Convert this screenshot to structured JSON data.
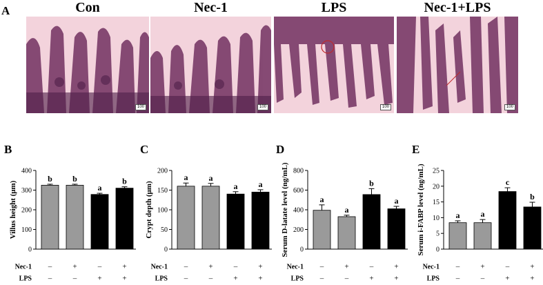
{
  "figure": {
    "panel_a_label": "A",
    "micrographs": [
      {
        "title": "Con",
        "scale_label": "100"
      },
      {
        "title": "Nec-1",
        "scale_label": "100"
      },
      {
        "title": "LPS",
        "scale_label": "100"
      },
      {
        "title": "Nec-1+LPS",
        "scale_label": "100"
      }
    ]
  },
  "colors": {
    "gray_bar": "#9a9a9a",
    "black_bar": "#000000",
    "tissue": "#f1c9d3",
    "stain": "#6c3560"
  },
  "chart_data": [
    {
      "panel": "B",
      "type": "bar",
      "categories": [
        "Con",
        "Nec-1",
        "LPS",
        "Nec-1+LPS"
      ],
      "values": [
        325,
        325,
        278,
        310
      ],
      "errors": [
        5,
        5,
        6,
        7
      ],
      "sig_letters": [
        "b",
        "b",
        "a",
        "b"
      ],
      "bar_colors": [
        "#9a9a9a",
        "#9a9a9a",
        "#000000",
        "#000000"
      ],
      "ylabel": "Villus height (μm)",
      "ylim": [
        0,
        400
      ],
      "yticks": [
        "0",
        "100",
        "200",
        "300",
        "400"
      ],
      "treatment_rows": [
        {
          "label": "Nec-1",
          "signs": [
            "–",
            "+",
            "–",
            "+"
          ]
        },
        {
          "label": "LPS",
          "signs": [
            "–",
            "–",
            "+",
            "+"
          ]
        }
      ]
    },
    {
      "panel": "C",
      "type": "bar",
      "categories": [
        "Con",
        "Nec-1",
        "LPS",
        "Nec-1+LPS"
      ],
      "values": [
        160,
        160,
        140,
        145
      ],
      "errors": [
        8,
        7,
        6,
        6
      ],
      "sig_letters": [
        "a",
        "a",
        "a",
        "a"
      ],
      "bar_colors": [
        "#9a9a9a",
        "#9a9a9a",
        "#000000",
        "#000000"
      ],
      "ylabel": "Crypt depth (μm)",
      "ylim": [
        0,
        200
      ],
      "yticks": [
        "0",
        "50",
        "100",
        "150",
        "200"
      ],
      "treatment_rows": [
        {
          "label": "Nec-1",
          "signs": [
            "–",
            "+",
            "–",
            "+"
          ]
        },
        {
          "label": "LPS",
          "signs": [
            "–",
            "–",
            "+",
            "+"
          ]
        }
      ]
    },
    {
      "panel": "D",
      "type": "bar",
      "categories": [
        "Con",
        "Nec-1",
        "LPS",
        "Nec-1+LPS"
      ],
      "values": [
        395,
        330,
        555,
        410
      ],
      "errors": [
        55,
        15,
        60,
        25
      ],
      "sig_letters": [
        "a",
        "a",
        "b",
        "a"
      ],
      "bar_colors": [
        "#9a9a9a",
        "#9a9a9a",
        "#000000",
        "#000000"
      ],
      "ylabel": "Serum D-latate level (ng/mL)",
      "ylim": [
        0,
        800
      ],
      "yticks": [
        "0",
        "200",
        "400",
        "600",
        "800"
      ],
      "treatment_rows": [
        {
          "label": "Nec-1",
          "signs": [
            "–",
            "+",
            "–",
            "+"
          ]
        },
        {
          "label": "LPS",
          "signs": [
            "–",
            "–",
            "+",
            "+"
          ]
        }
      ]
    },
    {
      "panel": "E",
      "type": "bar",
      "categories": [
        "Con",
        "Nec-1",
        "LPS",
        "Nec-1+LPS"
      ],
      "values": [
        8.4,
        8.4,
        18.3,
        13.4
      ],
      "errors": [
        0.6,
        1.0,
        1.2,
        1.5
      ],
      "sig_letters": [
        "a",
        "a",
        "c",
        "b"
      ],
      "bar_colors": [
        "#9a9a9a",
        "#9a9a9a",
        "#000000",
        "#000000"
      ],
      "ylabel": "Serum i-FABP level (ng/mL)",
      "ylim": [
        0,
        25
      ],
      "yticks": [
        "0",
        "5",
        "10",
        "15",
        "20",
        "25"
      ],
      "treatment_rows": [
        {
          "label": "Nec-1",
          "signs": [
            "–",
            "+",
            "–",
            "+"
          ]
        },
        {
          "label": "LPS",
          "signs": [
            "–",
            "–",
            "+",
            "+"
          ]
        }
      ]
    }
  ]
}
